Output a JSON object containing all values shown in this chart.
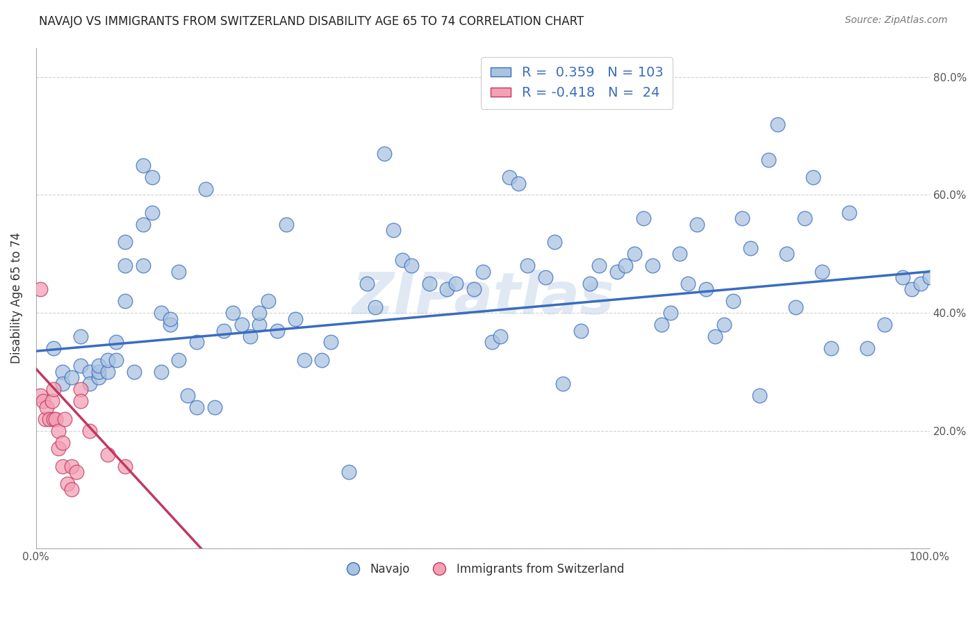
{
  "title": "NAVAJO VS IMMIGRANTS FROM SWITZERLAND DISABILITY AGE 65 TO 74 CORRELATION CHART",
  "source": "Source: ZipAtlas.com",
  "ylabel": "Disability Age 65 to 74",
  "xlim": [
    0.0,
    1.0
  ],
  "ylim": [
    0.0,
    0.85
  ],
  "navajo_R": 0.359,
  "navajo_N": 103,
  "swiss_R": -0.418,
  "swiss_N": 24,
  "navajo_color": "#aac4e0",
  "swiss_color": "#f4a0b5",
  "navajo_line_color": "#3a6cc0",
  "swiss_line_color": "#c03860",
  "watermark": "ZIPatlas",
  "navajo_x": [
    0.02,
    0.03,
    0.03,
    0.04,
    0.05,
    0.05,
    0.06,
    0.06,
    0.07,
    0.07,
    0.07,
    0.08,
    0.08,
    0.09,
    0.09,
    0.1,
    0.1,
    0.1,
    0.11,
    0.12,
    0.12,
    0.12,
    0.13,
    0.13,
    0.14,
    0.14,
    0.15,
    0.15,
    0.16,
    0.16,
    0.17,
    0.18,
    0.18,
    0.19,
    0.2,
    0.21,
    0.22,
    0.23,
    0.24,
    0.25,
    0.25,
    0.26,
    0.27,
    0.28,
    0.29,
    0.3,
    0.32,
    0.33,
    0.35,
    0.37,
    0.38,
    0.39,
    0.4,
    0.41,
    0.42,
    0.44,
    0.46,
    0.47,
    0.49,
    0.5,
    0.51,
    0.52,
    0.53,
    0.54,
    0.55,
    0.57,
    0.58,
    0.59,
    0.61,
    0.62,
    0.63,
    0.65,
    0.66,
    0.67,
    0.68,
    0.69,
    0.7,
    0.71,
    0.72,
    0.73,
    0.74,
    0.75,
    0.76,
    0.77,
    0.78,
    0.79,
    0.8,
    0.81,
    0.82,
    0.83,
    0.84,
    0.85,
    0.86,
    0.87,
    0.88,
    0.89,
    0.91,
    0.93,
    0.95,
    0.97,
    0.98,
    0.99,
    1.0
  ],
  "navajo_y": [
    0.34,
    0.3,
    0.28,
    0.29,
    0.31,
    0.36,
    0.3,
    0.28,
    0.29,
    0.3,
    0.31,
    0.3,
    0.32,
    0.35,
    0.32,
    0.52,
    0.48,
    0.42,
    0.3,
    0.48,
    0.55,
    0.65,
    0.63,
    0.57,
    0.3,
    0.4,
    0.38,
    0.39,
    0.32,
    0.47,
    0.26,
    0.24,
    0.35,
    0.61,
    0.24,
    0.37,
    0.4,
    0.38,
    0.36,
    0.38,
    0.4,
    0.42,
    0.37,
    0.55,
    0.39,
    0.32,
    0.32,
    0.35,
    0.13,
    0.45,
    0.41,
    0.67,
    0.54,
    0.49,
    0.48,
    0.45,
    0.44,
    0.45,
    0.44,
    0.47,
    0.35,
    0.36,
    0.63,
    0.62,
    0.48,
    0.46,
    0.52,
    0.28,
    0.37,
    0.45,
    0.48,
    0.47,
    0.48,
    0.5,
    0.56,
    0.48,
    0.38,
    0.4,
    0.5,
    0.45,
    0.55,
    0.44,
    0.36,
    0.38,
    0.42,
    0.56,
    0.51,
    0.26,
    0.66,
    0.72,
    0.5,
    0.41,
    0.56,
    0.63,
    0.47,
    0.34,
    0.57,
    0.34,
    0.38,
    0.46,
    0.44,
    0.45,
    0.46
  ],
  "swiss_x": [
    0.005,
    0.005,
    0.008,
    0.01,
    0.012,
    0.015,
    0.018,
    0.02,
    0.02,
    0.022,
    0.025,
    0.025,
    0.03,
    0.03,
    0.032,
    0.035,
    0.04,
    0.04,
    0.045,
    0.05,
    0.05,
    0.06,
    0.08,
    0.1
  ],
  "swiss_y": [
    0.44,
    0.26,
    0.25,
    0.22,
    0.24,
    0.22,
    0.25,
    0.22,
    0.27,
    0.22,
    0.2,
    0.17,
    0.18,
    0.14,
    0.22,
    0.11,
    0.14,
    0.1,
    0.13,
    0.27,
    0.25,
    0.2,
    0.16,
    0.14
  ],
  "navajo_line_x0": 0.0,
  "navajo_line_x1": 1.0,
  "navajo_line_y0": 0.335,
  "navajo_line_y1": 0.47,
  "swiss_line_x0": 0.0,
  "swiss_line_x1": 0.185,
  "swiss_line_y0": 0.305,
  "swiss_line_y1": 0.0
}
